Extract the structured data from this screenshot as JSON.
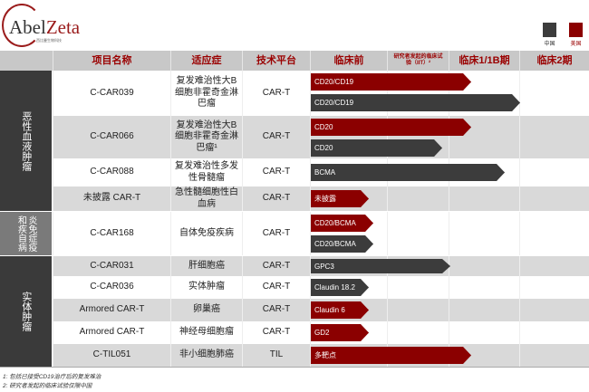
{
  "logo": {
    "text_main": "Abel",
    "text_accent": "Zeta",
    "subtitle": "西比曼生物科技"
  },
  "legend": [
    {
      "label": "中国",
      "color": "#3c3c3c"
    },
    {
      "label": "美国",
      "color": "#8b0000"
    }
  ],
  "header": {
    "name": "项目名称",
    "indication": "适应症",
    "platform": "技术平台",
    "preclinical": "临床前",
    "iit": "研究者发起的临床试验（IIT）²",
    "phase1": "临床1/1B期",
    "phase2": "临床2期"
  },
  "categories": [
    {
      "label": "恶性血液肿瘤",
      "color": "#3a3a3a"
    },
    {
      "label": "炎免症疫和疾自病",
      "color": "#7a7a7a"
    },
    {
      "label": "实体肿瘤",
      "color": "#3a3a3a"
    }
  ],
  "rows": [
    {
      "name": "C-CAR039",
      "indication": "复发难治性大B细胞非霍奇金淋巴瘤",
      "platform": "CAR-T",
      "bars": [
        {
          "label": "CD20/CD19",
          "region": "us",
          "stage": "phase1-entry"
        },
        {
          "label": "CD20/CD19",
          "region": "cn",
          "stage": "phase1-complete"
        }
      ]
    },
    {
      "name": "C-CAR066",
      "indication": "复发难治性大B细胞非霍奇金淋巴瘤¹",
      "platform": "CAR-T",
      "bars": [
        {
          "label": "CD20",
          "region": "us",
          "stage": "phase1-entry"
        },
        {
          "label": "CD20",
          "region": "cn",
          "stage": "iit"
        }
      ]
    },
    {
      "name": "C-CAR088",
      "indication": "复发难治性多发性骨髓瘤",
      "platform": "CAR-T",
      "bars": [
        {
          "label": "BCMA",
          "region": "cn",
          "stage": "phase1"
        }
      ]
    },
    {
      "name": "未披露 CAR-T",
      "indication": "急性髓细胞性白血病",
      "platform": "CAR-T",
      "bars": [
        {
          "label": "未披露",
          "region": "us",
          "stage": "preclinical"
        }
      ]
    },
    {
      "name": "C-CAR168",
      "indication": "自体免疫疾病",
      "platform": "CAR-T",
      "bars": [
        {
          "label": "CD20/BCMA",
          "region": "us",
          "stage": "preclinical"
        },
        {
          "label": "CD20/BCMA",
          "region": "cn",
          "stage": "preclinical"
        }
      ]
    },
    {
      "name": "C-CAR031",
      "indication": "肝细胞癌",
      "platform": "CAR-T",
      "bars": [
        {
          "label": "GPC3",
          "region": "cn",
          "stage": "iit"
        }
      ]
    },
    {
      "name": "C-CAR036",
      "indication": "实体肿瘤",
      "platform": "CAR-T",
      "bars": [
        {
          "label": "Claudin 18.2",
          "region": "cn",
          "stage": "preclinical"
        }
      ]
    },
    {
      "name": "Armored CAR-T",
      "indication": "卵巢癌",
      "platform": "CAR-T",
      "bars": [
        {
          "label": "Claudin 6",
          "region": "us",
          "stage": "preclinical"
        }
      ]
    },
    {
      "name": "Armored CAR-T",
      "indication": "神经母细胞瘤",
      "platform": "CAR-T",
      "bars": [
        {
          "label": "GD2",
          "region": "us",
          "stage": "preclinical"
        }
      ]
    },
    {
      "name": "C-TIL051",
      "indication": "非小细胞肺癌",
      "platform": "TIL",
      "bars": [
        {
          "label": "多靶点",
          "region": "us",
          "stage": "phase1-entry"
        }
      ]
    }
  ],
  "footnotes": [
    "1: 包括已接受CD19治疗后的复发难治",
    "2: 研究者发起的临床试验仅限中国"
  ]
}
